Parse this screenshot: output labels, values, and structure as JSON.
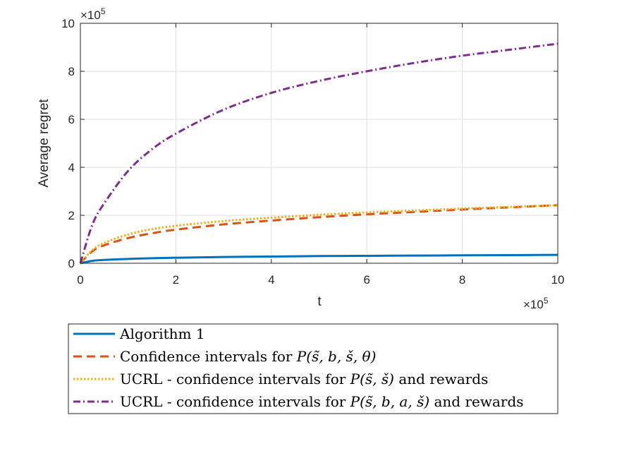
{
  "chart_data": {
    "type": "line",
    "title": "",
    "xlabel": "t",
    "ylabel": "Average regret",
    "x_multiplier": "×10",
    "x_multiplier_exp": "5",
    "y_multiplier": "×10",
    "y_multiplier_exp": "5",
    "xlim": [
      0,
      10
    ],
    "ylim": [
      0,
      10
    ],
    "x_ticks": [
      0,
      2,
      4,
      6,
      8,
      10
    ],
    "y_ticks": [
      0,
      2,
      4,
      6,
      8,
      10
    ],
    "x_tick_labels": [
      "0",
      "2",
      "4",
      "6",
      "8",
      "10"
    ],
    "y_tick_labels": [
      "0",
      "2",
      "4",
      "6",
      "8",
      "10"
    ],
    "grid": true,
    "legend_position": "below",
    "x": [
      0,
      0.25,
      0.5,
      1,
      1.5,
      2,
      3,
      4,
      5,
      6,
      7,
      8,
      9,
      10
    ],
    "series": [
      {
        "name": "Algorithm 1",
        "color": "#0072BD",
        "style": "solid",
        "values": [
          0,
          0.1,
          0.14,
          0.18,
          0.21,
          0.23,
          0.26,
          0.28,
          0.3,
          0.31,
          0.32,
          0.33,
          0.34,
          0.35
        ]
      },
      {
        "name": "Confidence intervals for P(s̃, b, š, θ)",
        "color": "#D95319",
        "style": "dashed",
        "values": [
          0,
          0.5,
          0.75,
          1.05,
          1.25,
          1.4,
          1.62,
          1.78,
          1.92,
          2.04,
          2.14,
          2.24,
          2.33,
          2.42
        ]
      },
      {
        "name": "UCRL - confidence intervals for P(s̃, š) and rewards",
        "color": "#EDB120",
        "style": "dotted",
        "values": [
          0,
          0.55,
          0.85,
          1.2,
          1.42,
          1.56,
          1.76,
          1.9,
          2.02,
          2.12,
          2.2,
          2.28,
          2.35,
          2.42
        ]
      },
      {
        "name": "UCRL - confidence intervals for P(s̃, b, a, š) and rewards",
        "color": "#7E2F8E",
        "style": "dashdot",
        "values": [
          0,
          1.6,
          2.5,
          3.85,
          4.75,
          5.4,
          6.4,
          7.1,
          7.6,
          8.0,
          8.35,
          8.65,
          8.9,
          9.15
        ]
      }
    ],
    "legend": {
      "entries": [
        {
          "prefix": "Algorithm 1",
          "math": "",
          "suffix": ""
        },
        {
          "prefix": "Confidence intervals for ",
          "math": "P(s̃, b, š, θ)",
          "suffix": ""
        },
        {
          "prefix": "UCRL - confidence intervals for ",
          "math": "P(s̃, š)",
          "suffix": " and rewards"
        },
        {
          "prefix": "UCRL - confidence intervals for ",
          "math": "P(s̃, b, a, š)",
          "suffix": " and rewards"
        }
      ]
    }
  }
}
